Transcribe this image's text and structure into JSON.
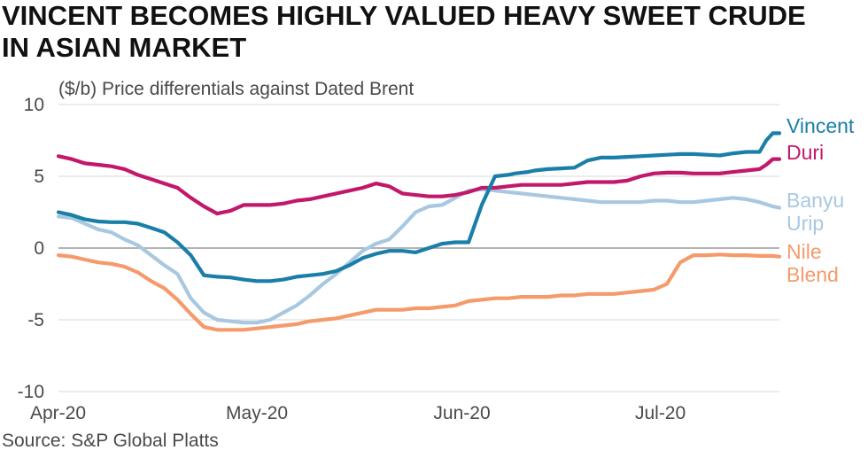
{
  "title_lines": [
    "VINCENT BECOMES HIGHLY VALUED HEAVY SWEET CRUDE",
    "IN ASIAN MARKET"
  ],
  "source": "Source: S&P Global Platts",
  "chart_data": {
    "type": "line",
    "title": "VINCENT BECOMES HIGHLY VALUED HEAVY SWEET CRUDE IN ASIAN MARKET",
    "ylabel": "($/b) Price differentials against Dated Brent",
    "xlabel": "",
    "ylim": [
      -10,
      10
    ],
    "yticks": [
      10,
      5,
      0,
      -5,
      -10
    ],
    "ytick_labels": [
      "10",
      "5",
      "0",
      "-5",
      "-10"
    ],
    "grid": true,
    "x_tick_labels": [
      "Apr-20",
      "May-20",
      "Jun-20",
      "Jul-20"
    ],
    "x_tick_positions": [
      0,
      30,
      61,
      91
    ],
    "xlim": [
      0,
      109
    ],
    "series": [
      {
        "name": "Vincent",
        "label_lines": [
          "Vincent"
        ],
        "color": "#1a7fa8",
        "x": [
          0,
          2,
          4,
          6,
          8,
          10,
          12,
          14,
          16,
          18,
          20,
          22,
          24,
          26,
          28,
          30,
          32,
          34,
          36,
          38,
          40,
          42,
          44,
          46,
          48,
          50,
          52,
          54,
          56,
          58,
          60,
          62,
          64,
          66,
          68,
          69,
          70,
          71,
          72,
          74,
          76,
          78,
          80,
          82,
          84,
          86,
          88,
          90,
          92,
          94,
          96,
          98,
          100,
          102,
          104,
          106,
          107,
          108,
          109
        ],
        "values": [
          2.5,
          2.3,
          2.0,
          1.85,
          1.8,
          1.8,
          1.7,
          1.4,
          1.1,
          0.4,
          -0.5,
          -1.9,
          -2.0,
          -2.05,
          -2.2,
          -2.3,
          -2.3,
          -2.2,
          -2.0,
          -1.9,
          -1.8,
          -1.6,
          -1.2,
          -0.7,
          -0.4,
          -0.2,
          -0.2,
          -0.3,
          0.0,
          0.3,
          0.4,
          0.4,
          3.0,
          5.0,
          5.1,
          5.2,
          5.25,
          5.3,
          5.4,
          5.5,
          5.55,
          5.6,
          6.1,
          6.3,
          6.3,
          6.35,
          6.4,
          6.45,
          6.5,
          6.55,
          6.55,
          6.5,
          6.45,
          6.6,
          6.7,
          6.7,
          7.5,
          8.0,
          8.0
        ]
      },
      {
        "name": "Duri",
        "label_lines": [
          "Duri"
        ],
        "color": "#c2186b",
        "x": [
          0,
          2,
          4,
          6,
          8,
          10,
          12,
          14,
          16,
          18,
          20,
          22,
          24,
          26,
          28,
          30,
          32,
          34,
          36,
          38,
          40,
          42,
          44,
          46,
          48,
          50,
          52,
          54,
          56,
          58,
          60,
          62,
          64,
          66,
          68,
          70,
          72,
          74,
          76,
          78,
          80,
          82,
          84,
          86,
          88,
          90,
          92,
          94,
          96,
          98,
          100,
          102,
          104,
          106,
          107,
          108,
          109
        ],
        "values": [
          6.4,
          6.2,
          5.9,
          5.8,
          5.7,
          5.5,
          5.1,
          4.8,
          4.5,
          4.2,
          3.5,
          2.9,
          2.4,
          2.6,
          3.0,
          3.0,
          3.0,
          3.1,
          3.3,
          3.4,
          3.6,
          3.8,
          4.0,
          4.2,
          4.5,
          4.3,
          3.8,
          3.7,
          3.6,
          3.6,
          3.7,
          3.9,
          4.2,
          4.2,
          4.3,
          4.4,
          4.4,
          4.4,
          4.4,
          4.5,
          4.6,
          4.6,
          4.6,
          4.7,
          5.0,
          5.2,
          5.25,
          5.25,
          5.2,
          5.2,
          5.2,
          5.3,
          5.4,
          5.5,
          5.8,
          6.2,
          6.2
        ]
      },
      {
        "name": "Banyu Urip",
        "label_lines": [
          "Banyu",
          "Urip"
        ],
        "color": "#a8c8e1",
        "x": [
          0,
          2,
          4,
          6,
          8,
          10,
          12,
          14,
          16,
          18,
          20,
          22,
          24,
          26,
          28,
          30,
          32,
          34,
          36,
          38,
          40,
          42,
          44,
          46,
          48,
          50,
          52,
          54,
          56,
          58,
          60,
          62,
          64,
          66,
          68,
          70,
          72,
          74,
          76,
          78,
          80,
          82,
          84,
          86,
          88,
          90,
          92,
          94,
          96,
          98,
          100,
          102,
          104,
          106,
          108,
          109
        ],
        "values": [
          2.2,
          2.1,
          1.7,
          1.3,
          1.1,
          0.6,
          0.2,
          -0.5,
          -1.2,
          -1.8,
          -3.5,
          -4.5,
          -5.0,
          -5.1,
          -5.2,
          -5.2,
          -5.0,
          -4.5,
          -4.0,
          -3.3,
          -2.5,
          -1.8,
          -1.0,
          -0.2,
          0.3,
          0.6,
          1.5,
          2.5,
          2.9,
          3.0,
          3.5,
          4.0,
          4.1,
          4.0,
          3.9,
          3.8,
          3.7,
          3.6,
          3.5,
          3.4,
          3.3,
          3.2,
          3.2,
          3.2,
          3.2,
          3.3,
          3.3,
          3.2,
          3.2,
          3.3,
          3.4,
          3.5,
          3.4,
          3.2,
          2.9,
          2.8
        ]
      },
      {
        "name": "Nile Blend",
        "label_lines": [
          "Nile",
          "Blend"
        ],
        "color": "#f59a6b",
        "x": [
          0,
          2,
          4,
          6,
          8,
          10,
          12,
          14,
          16,
          18,
          20,
          22,
          24,
          26,
          28,
          30,
          32,
          34,
          36,
          38,
          40,
          42,
          44,
          46,
          48,
          50,
          52,
          54,
          56,
          58,
          60,
          62,
          64,
          66,
          68,
          70,
          72,
          74,
          76,
          78,
          80,
          82,
          84,
          86,
          88,
          90,
          92,
          94,
          96,
          98,
          100,
          102,
          104,
          106,
          108,
          109
        ],
        "values": [
          -0.5,
          -0.6,
          -0.8,
          -1.0,
          -1.1,
          -1.3,
          -1.7,
          -2.3,
          -2.8,
          -3.6,
          -4.6,
          -5.5,
          -5.7,
          -5.7,
          -5.7,
          -5.6,
          -5.5,
          -5.4,
          -5.3,
          -5.1,
          -5.0,
          -4.9,
          -4.7,
          -4.5,
          -4.3,
          -4.3,
          -4.3,
          -4.2,
          -4.2,
          -4.1,
          -4.0,
          -3.7,
          -3.6,
          -3.5,
          -3.5,
          -3.4,
          -3.4,
          -3.4,
          -3.3,
          -3.3,
          -3.2,
          -3.2,
          -3.2,
          -3.1,
          -3.0,
          -2.9,
          -2.5,
          -1.0,
          -0.5,
          -0.5,
          -0.45,
          -0.5,
          -0.5,
          -0.55,
          -0.55,
          -0.6
        ]
      }
    ]
  }
}
